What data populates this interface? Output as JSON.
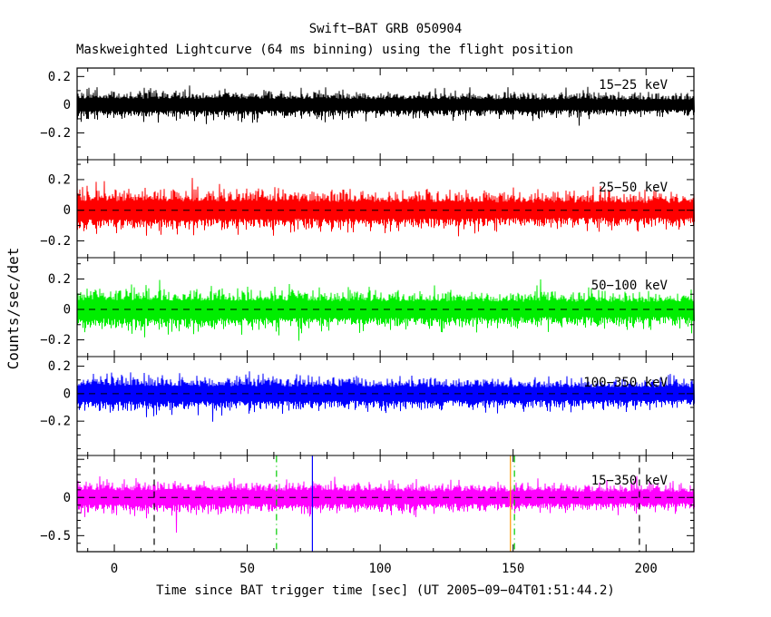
{
  "chart_data": {
    "type": "line",
    "title": "Swift−BAT GRB 050904",
    "subtitle": "Maskweighted Lightcurve (64 ms binning) using the flight position",
    "xlabel": "Time since BAT trigger time [sec] (UT 2005−09−04T01:51:44.2)",
    "ylabel": "Counts/sec/det",
    "y_units": "Counts/sec/det",
    "binning": "64 ms",
    "grid": false,
    "x_range": [
      -14,
      218
    ],
    "x_ticks_major": [
      0,
      50,
      100,
      150,
      200
    ],
    "x_tick_labels": [
      "0",
      "50",
      "100",
      "150",
      "200"
    ],
    "x_minor_step": 10,
    "panels": [
      {
        "label": "15−25 keV",
        "color": "#000000",
        "ylim": [
          -0.39,
          0.26
        ],
        "baseline": 0,
        "yticks_major": [
          0.2,
          0,
          -0.2
        ],
        "ytick_labels": [
          {
            "v": 0.2,
            "text": "0.2"
          },
          {
            "v": 0,
            "text": "0"
          },
          {
            "v": -0.2,
            "text": "−0.2"
          }
        ],
        "noise_typical": 0.055,
        "noise_peak": 0.16
      },
      {
        "label": "25−50 keV",
        "color": "#ff0000",
        "ylim": [
          -0.31,
          0.33
        ],
        "baseline": 0,
        "yticks_major": [
          0.2,
          0,
          -0.2
        ],
        "ytick_labels": [
          {
            "v": 0.2,
            "text": "0.2"
          },
          {
            "v": 0,
            "text": "0"
          },
          {
            "v": -0.2,
            "text": "−0.2"
          }
        ],
        "noise_typical": 0.075,
        "noise_peak": 0.2
      },
      {
        "label": "50−100 keV",
        "color": "#00ee00",
        "ylim": [
          -0.31,
          0.34
        ],
        "baseline": 0,
        "yticks_major": [
          0.2,
          0,
          -0.2
        ],
        "ytick_labels": [
          {
            "v": 0.2,
            "text": "0.2"
          },
          {
            "v": 0,
            "text": "0"
          },
          {
            "v": -0.2,
            "text": "−0.2"
          }
        ],
        "noise_typical": 0.075,
        "noise_peak": 0.2
      },
      {
        "label": "100−350 keV",
        "color": "#0000ff",
        "ylim": [
          -0.45,
          0.27
        ],
        "baseline": 0,
        "yticks_major": [
          0.2,
          0,
          -0.2
        ],
        "ytick_labels": [
          {
            "v": 0.2,
            "text": "0.2"
          },
          {
            "v": 0,
            "text": "0"
          },
          {
            "v": -0.2,
            "text": "−0.2"
          }
        ],
        "noise_typical": 0.07,
        "noise_peak": 0.18
      },
      {
        "label": "15−350 keV",
        "color": "#ff00ff",
        "ylim": [
          -0.71,
          0.55
        ],
        "baseline": 0,
        "yticks_major": [
          0.5,
          0,
          -0.5
        ],
        "ytick_labels": [
          {
            "v": 0,
            "text": "0"
          },
          {
            "v": -0.5,
            "text": "−0.5"
          }
        ],
        "noise_typical": 0.115,
        "noise_peak": 0.3
      }
    ],
    "zero_line": {
      "style": "dashed",
      "color": "#000000"
    },
    "event_markers": [
      {
        "t": 15,
        "color": "#000000",
        "style": "dashed"
      },
      {
        "t": 61,
        "color": "#00cc00",
        "style": "dashdot"
      },
      {
        "t": 74.5,
        "color": "#0000ff",
        "style": "solid"
      },
      {
        "t": 149,
        "color": "#ff9900",
        "style": "solid"
      },
      {
        "t": 150.5,
        "color": "#00cc00",
        "style": "dashdot"
      },
      {
        "t": 197.5,
        "color": "#000000",
        "style": "dashed"
      }
    ],
    "series_description": "Mask-weighted background-subtracted count-rate noise fluctuating about 0 counts/sec/det in each energy band; no bright burst spike visible at this scale."
  }
}
